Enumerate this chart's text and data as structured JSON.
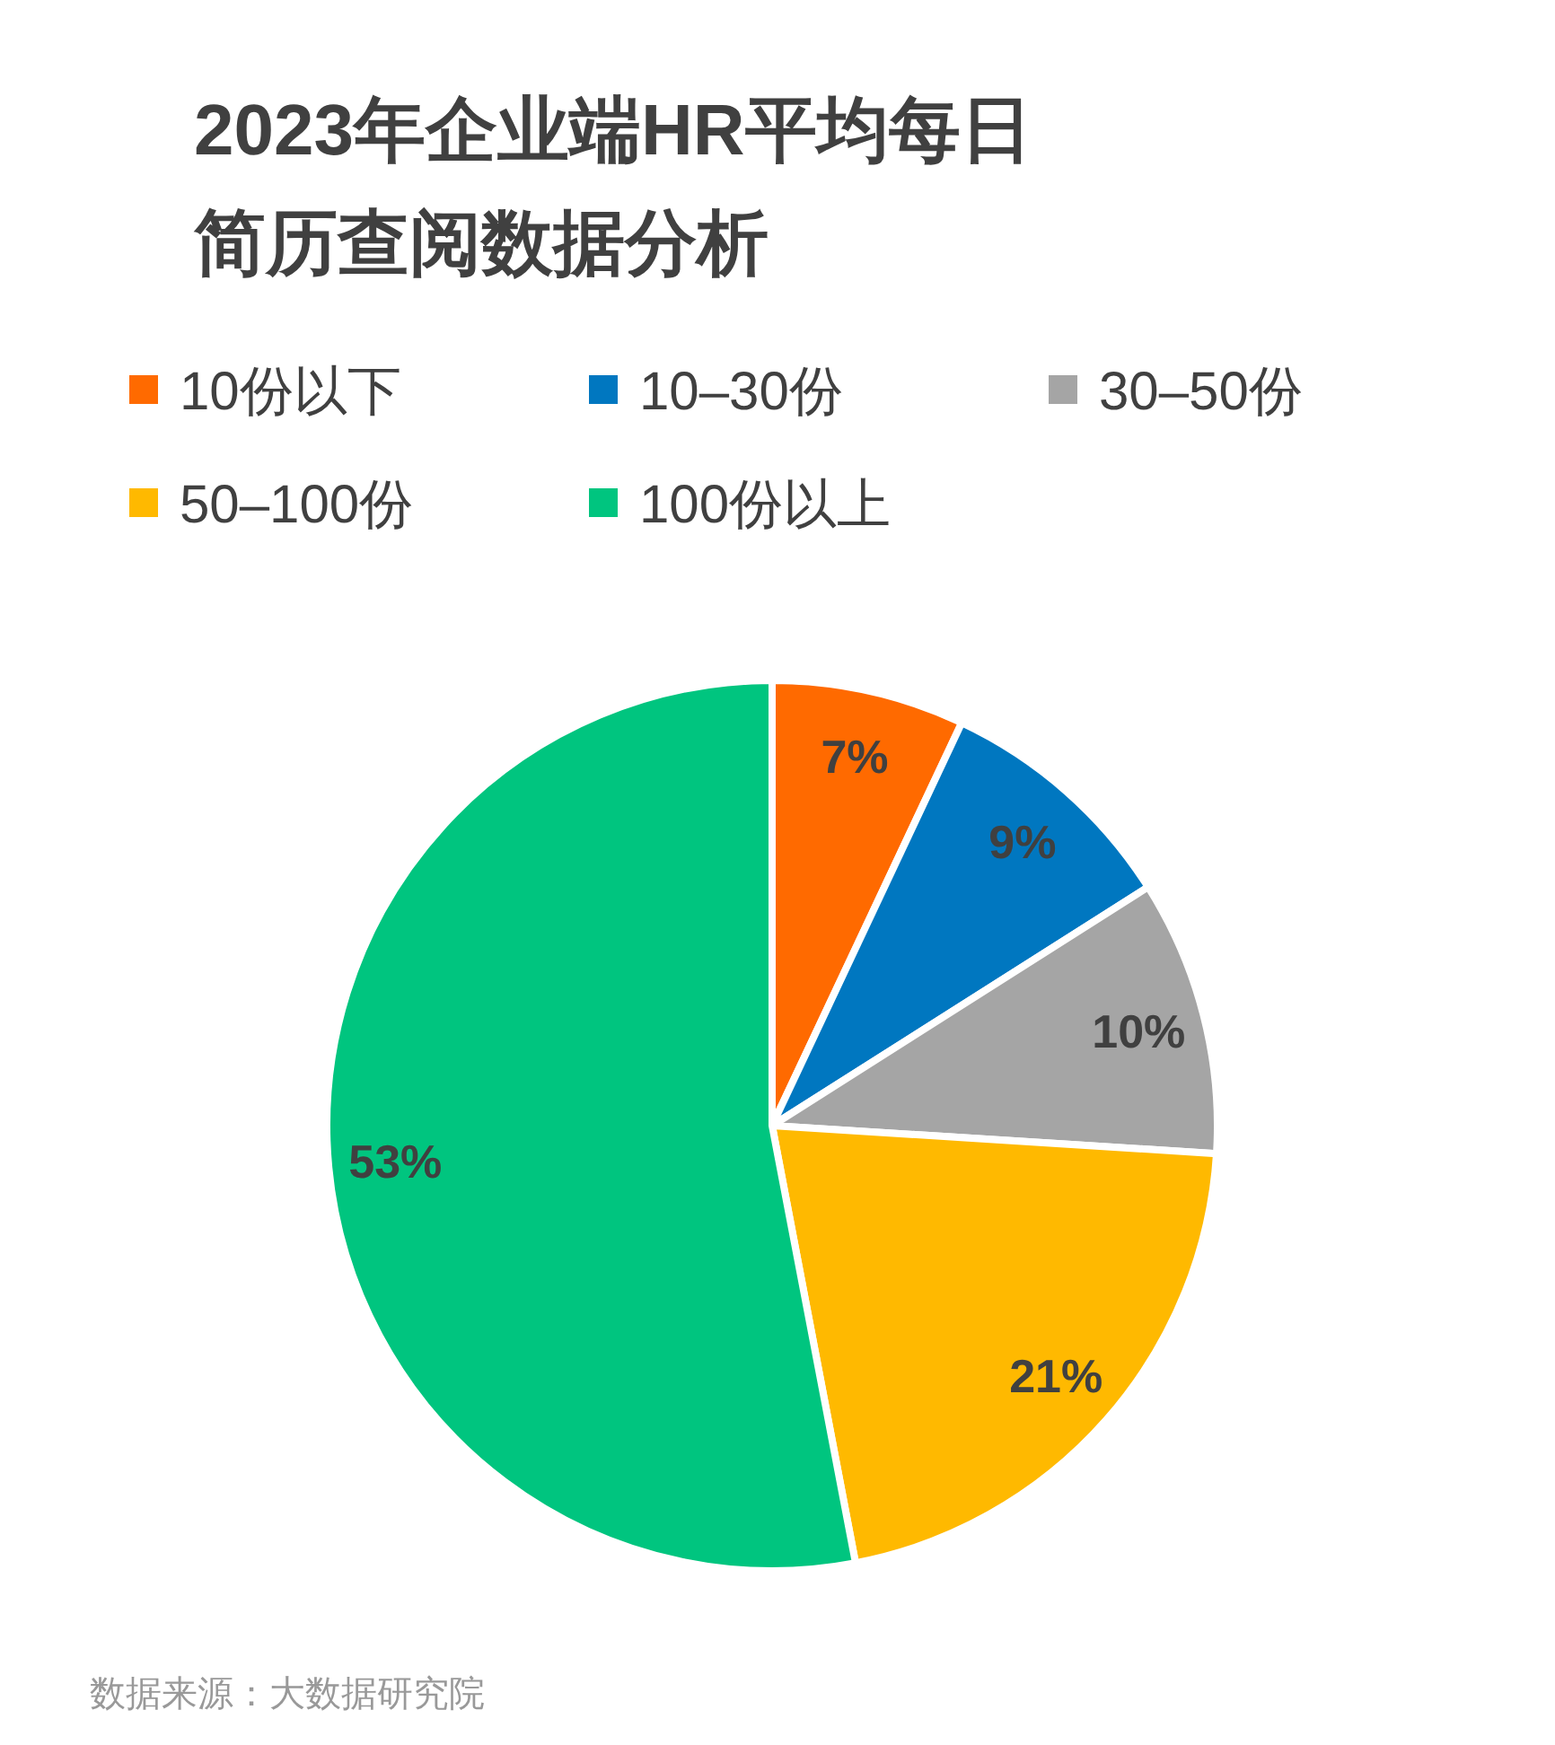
{
  "chart_data": {
    "type": "pie",
    "title": "2023年企业端HR平均每日简历查阅数据分析",
    "categories": [
      "10份以下",
      "10–30份",
      "30–50份",
      "50–100份",
      "100份以上"
    ],
    "values": [
      7,
      9,
      10,
      21,
      53
    ],
    "colors": [
      "#ff6a00",
      "#0077c0",
      "#a5a5a5",
      "#ffb900",
      "#00c57f"
    ],
    "value_labels": [
      "7%",
      "9%",
      "10%",
      "21%",
      "53%"
    ],
    "legend": "top",
    "annotations": [
      "数据来源：大数据研究院"
    ]
  }
}
